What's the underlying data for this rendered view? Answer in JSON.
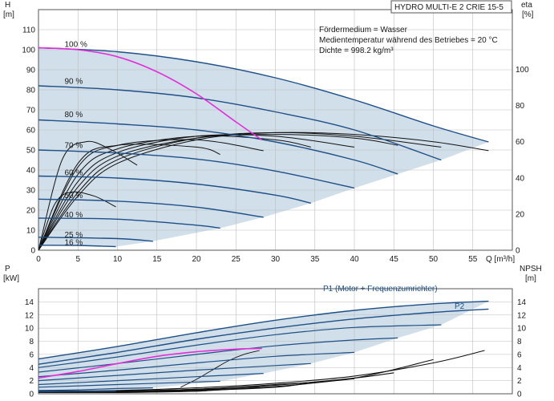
{
  "header": {
    "title": "HYDRO MULTI-E 2 CRIE 15-5"
  },
  "info": {
    "lines": [
      "Fördermedium = Wasser",
      "Medientemperatur während des Betriebes = 20 °C",
      "Dichte = 998.2 kg/m³"
    ]
  },
  "colors": {
    "navy": "#1e4f86",
    "shade": "#c9d9e6",
    "magenta": "#e32fd8",
    "black": "#111111",
    "grid": "#bcbcbc"
  },
  "chart_data": [
    {
      "type": "line",
      "name": "head-efficiency",
      "ylabel": "H",
      "yunit": "[m]",
      "y2label": "eta",
      "y2unit": "[%]",
      "xlabel": "Q [m³/h]",
      "xlim": [
        0,
        60
      ],
      "xticks": [
        0,
        5,
        10,
        15,
        20,
        25,
        30,
        35,
        40,
        45,
        50,
        55
      ],
      "ylim": [
        0,
        120
      ],
      "yticks": [
        0,
        10,
        20,
        30,
        40,
        50,
        60,
        70,
        80,
        90,
        100,
        110
      ],
      "y2lim": [
        0,
        133
      ],
      "y2ticks": [
        0,
        20,
        40,
        60,
        80,
        100
      ],
      "grid": true,
      "speed_labels": [
        {
          "text": "100 %",
          "q": 3.3,
          "h": 101.5
        },
        {
          "text": "90 %",
          "q": 3.3,
          "h": 83
        },
        {
          "text": "80 %",
          "q": 3.3,
          "h": 66.5
        },
        {
          "text": "70 %",
          "q": 3.3,
          "h": 51
        },
        {
          "text": "60 %",
          "q": 3.3,
          "h": 37.5
        },
        {
          "text": "50 %",
          "q": 3.3,
          "h": 26
        },
        {
          "text": "40 %",
          "q": 3.3,
          "h": 16.5
        },
        {
          "text": "25 %",
          "q": 3.3,
          "h": 6.5
        },
        {
          "text": "16 %",
          "q": 3.3,
          "h": 2.6
        }
      ],
      "head_curves": [
        {
          "speed": 100,
          "q": [
            0,
            10,
            20,
            30,
            40,
            50,
            57
          ],
          "h": [
            101,
            99,
            94,
            86,
            75,
            62,
            54
          ]
        },
        {
          "speed": 90,
          "q": [
            0,
            10,
            20,
            30,
            40,
            51
          ],
          "h": [
            82,
            80,
            76,
            69,
            60,
            45
          ]
        },
        {
          "speed": 80,
          "q": [
            0,
            10,
            20,
            30,
            40,
            45.5
          ],
          "h": [
            65,
            63,
            60,
            54,
            45,
            38
          ]
        },
        {
          "speed": 70,
          "q": [
            0,
            10,
            20,
            30,
            40
          ],
          "h": [
            50,
            48.5,
            45.5,
            39.5,
            31
          ]
        },
        {
          "speed": 60,
          "q": [
            0,
            10,
            20,
            30,
            34.5
          ],
          "h": [
            37,
            36,
            33,
            27.5,
            23.5
          ]
        },
        {
          "speed": 50,
          "q": [
            0,
            10,
            20,
            28.5
          ],
          "h": [
            25.5,
            24.5,
            21.5,
            16.5
          ]
        },
        {
          "speed": 40,
          "q": [
            0,
            10,
            20,
            23
          ],
          "h": [
            16,
            15.5,
            12.5,
            11
          ]
        },
        {
          "speed": 25,
          "q": [
            0,
            10,
            14.5
          ],
          "h": [
            6.5,
            5.8,
            4.5
          ]
        },
        {
          "speed": 16,
          "q": [
            0,
            5,
            9.8
          ],
          "h": [
            2.5,
            2.4,
            1.8
          ]
        }
      ],
      "operating_curve": {
        "q": [
          0,
          5,
          10,
          15,
          20,
          25,
          28.3
        ],
        "h": [
          101,
          100,
          96.5,
          89,
          78,
          64,
          55
        ]
      },
      "eta_curves": [
        {
          "q": [
            0,
            5,
            10,
            20,
            30,
            40,
            50,
            57
          ],
          "eta": [
            0,
            30,
            48,
            61,
            65,
            64,
            60,
            55
          ]
        },
        {
          "q": [
            0,
            5,
            10,
            20,
            30,
            40,
            51
          ],
          "eta": [
            0,
            32,
            50,
            62,
            65,
            63,
            57
          ]
        },
        {
          "q": [
            0,
            5,
            10,
            20,
            30,
            40,
            45.5
          ],
          "eta": [
            0,
            35,
            52,
            62,
            64,
            62,
            58
          ]
        },
        {
          "q": [
            0,
            5,
            10,
            20,
            30,
            40
          ],
          "eta": [
            0,
            38,
            54,
            63,
            63,
            57
          ]
        },
        {
          "q": [
            0,
            5,
            10,
            20,
            30,
            34.5
          ],
          "eta": [
            0,
            42,
            56,
            63,
            61,
            57
          ]
        },
        {
          "q": [
            0,
            5,
            10,
            20,
            28.5
          ],
          "eta": [
            0,
            46,
            58,
            61,
            55
          ]
        },
        {
          "q": [
            0,
            5,
            10,
            20,
            23
          ],
          "eta": [
            0,
            48,
            58,
            57,
            53
          ]
        },
        {
          "q": [
            0,
            3,
            6,
            9,
            12.5
          ],
          "eta": [
            0,
            50,
            60,
            56,
            47
          ]
        },
        {
          "q": [
            0,
            2,
            4,
            7,
            9.8
          ],
          "eta": [
            0,
            25,
            32,
            30,
            24
          ]
        }
      ]
    },
    {
      "type": "line",
      "name": "power-npsh",
      "ylabel": "P",
      "yunit": "[kW]",
      "y2label": "NPSH",
      "y2unit": "[m]",
      "xlim": [
        0,
        60
      ],
      "ylim": [
        0,
        16
      ],
      "yticks": [
        0,
        2,
        4,
        6,
        8,
        10,
        12,
        14
      ],
      "y2lim": [
        0,
        16
      ],
      "y2ticks": [
        0,
        2,
        4,
        6,
        8,
        10,
        12,
        14
      ],
      "grid": true,
      "series": [
        {
          "name": "P1 (Motor + Frequenzumrichter)",
          "q": [
            0,
            10,
            20,
            30,
            40,
            50,
            57
          ],
          "p": [
            5.3,
            7.2,
            9.3,
            11.2,
            12.7,
            13.7,
            14.1
          ]
        },
        {
          "name": "P2",
          "q": [
            0,
            10,
            20,
            30,
            40,
            50,
            57
          ],
          "p": [
            4.5,
            6.3,
            8.3,
            10.0,
            11.4,
            12.4,
            12.9
          ]
        }
      ],
      "power_curves": [
        {
          "q": [
            0,
            10,
            20,
            30,
            40,
            51
          ],
          "p": [
            4.0,
            5.6,
            7.4,
            9.0,
            10.1,
            10.5
          ]
        },
        {
          "q": [
            0,
            10,
            20,
            30,
            40,
            45.5
          ],
          "p": [
            3.3,
            4.6,
            6.0,
            7.3,
            8.2,
            8.5
          ]
        },
        {
          "q": [
            0,
            10,
            20,
            30,
            40
          ],
          "p": [
            2.6,
            3.6,
            4.7,
            5.7,
            6.3
          ]
        },
        {
          "q": [
            0,
            10,
            20,
            30,
            34.5
          ],
          "p": [
            2.0,
            2.8,
            3.6,
            4.3,
            4.6
          ]
        },
        {
          "q": [
            0,
            10,
            20,
            28.5
          ],
          "p": [
            1.4,
            2.0,
            2.6,
            3.1
          ]
        },
        {
          "q": [
            0,
            10,
            20,
            23
          ],
          "p": [
            1.0,
            1.4,
            1.8,
            1.9
          ]
        },
        {
          "q": [
            0,
            5,
            10,
            14.5
          ],
          "p": [
            0.5,
            0.6,
            0.8,
            0.9
          ]
        },
        {
          "q": [
            0,
            5,
            9.8
          ],
          "p": [
            0.3,
            0.35,
            0.4
          ]
        }
      ],
      "operating_power": {
        "q": [
          0,
          5,
          10,
          15,
          20,
          25,
          28.3
        ],
        "p": [
          2.4,
          3.4,
          4.6,
          5.7,
          6.4,
          6.8,
          6.9
        ]
      },
      "npsh_curves": [
        {
          "q": [
            0,
            10,
            20,
            30,
            40,
            50,
            56.5
          ],
          "n": [
            0.4,
            0.5,
            0.9,
            1.6,
            2.7,
            4.7,
            6.6
          ]
        },
        {
          "q": [
            0,
            10,
            20,
            30,
            40,
            50
          ],
          "n": [
            0.3,
            0.4,
            0.7,
            1.4,
            2.4,
            5.2
          ]
        },
        {
          "q": [
            0,
            10,
            20,
            30,
            40,
            45
          ],
          "n": [
            0.3,
            0.4,
            0.7,
            1.3,
            2.4,
            3.2
          ]
        },
        {
          "q": [
            0,
            10,
            20,
            30,
            40
          ],
          "n": [
            0.2,
            0.3,
            0.6,
            1.1,
            2.3
          ]
        },
        {
          "q": [
            0,
            10,
            20,
            30,
            34
          ],
          "n": [
            0.2,
            0.3,
            0.5,
            1.0,
            1.6
          ]
        },
        {
          "q": [
            0,
            10,
            20,
            28
          ],
          "n": [
            0.2,
            0.2,
            0.4,
            1.0
          ]
        },
        {
          "q": [
            0,
            10,
            20,
            22
          ],
          "n": [
            0.2,
            0.2,
            0.4,
            0.6
          ]
        }
      ],
      "npsh_ghost": {
        "q": [
          18,
          20,
          22,
          24,
          26,
          28
        ],
        "n": [
          1.0,
          2.2,
          3.6,
          5.0,
          6.0,
          6.6
        ]
      }
    }
  ]
}
